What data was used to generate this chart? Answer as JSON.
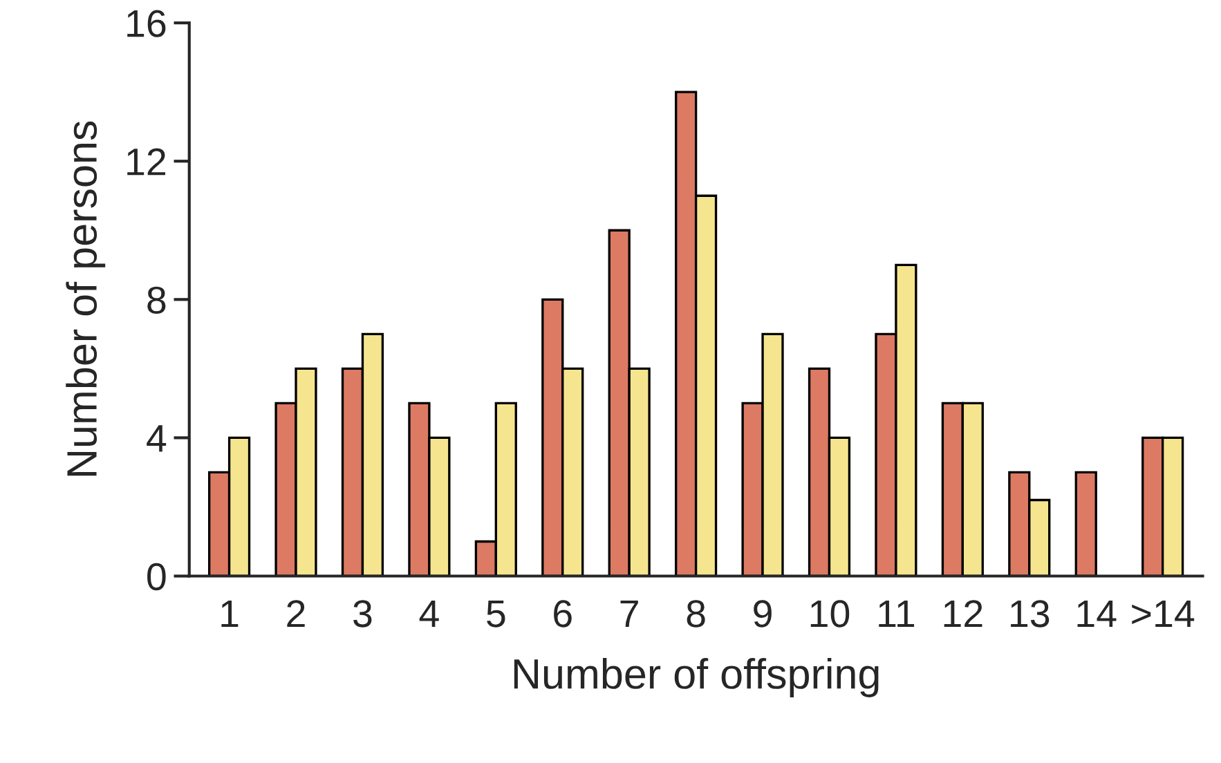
{
  "chart_data": {
    "type": "bar",
    "xlabel": "Number of offspring",
    "ylabel": "Number of persons",
    "categories": [
      "1",
      "2",
      "3",
      "4",
      "5",
      "6",
      "7",
      "8",
      "9",
      "10",
      "11",
      "12",
      "13",
      "14",
      ">14"
    ],
    "series": [
      {
        "color": "#dc7a63",
        "values": [
          3,
          5,
          6,
          5,
          1,
          8,
          10,
          14,
          5,
          6,
          7,
          5,
          3,
          3,
          4
        ]
      },
      {
        "color": "#f6e58f",
        "values": [
          4,
          6,
          7,
          4,
          5,
          6,
          6,
          11,
          7,
          4,
          9,
          5,
          2.2,
          null,
          4
        ]
      }
    ],
    "ylim": [
      0,
      16
    ],
    "yticks": [
      0,
      4,
      8,
      12,
      16
    ],
    "grid": false,
    "legend": false
  }
}
